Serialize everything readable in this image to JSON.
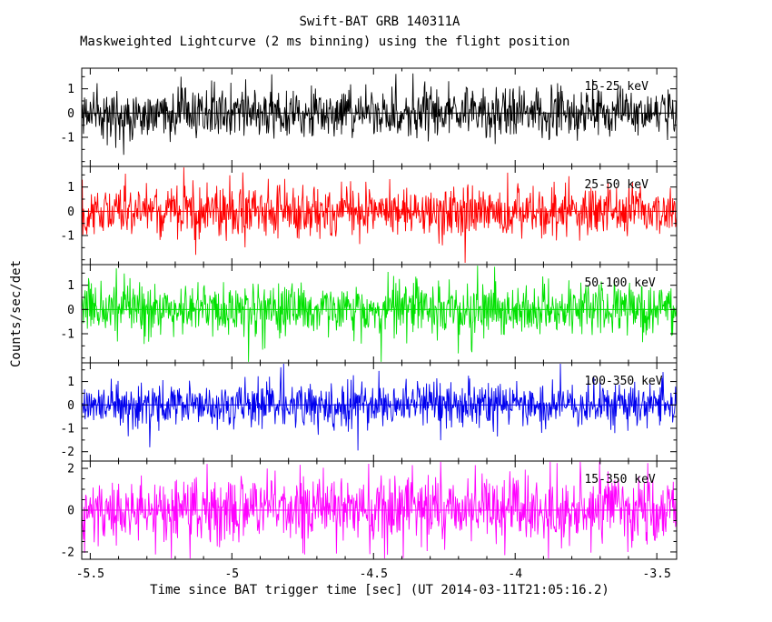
{
  "chart_data": {
    "type": "line",
    "title": "Swift-BAT GRB 140311A",
    "subtitle": "Maskweighted Lightcurve (2 ms binning) using the flight position",
    "xlabel": "Time since BAT trigger time [sec] (UT 2014-03-11T21:05:16.2)",
    "ylabel": "Counts/sec/det",
    "xlim": [
      -5.53,
      -3.43
    ],
    "xticks": [
      -5.5,
      -5,
      -4.5,
      -4,
      -3.5
    ],
    "x_minor_step": 0.1,
    "bin_ms": 2,
    "n_points": 1050,
    "grid": false,
    "legend_position": "inside-right-top-of-each-panel",
    "series": [
      {
        "name": "15-25 keV",
        "color": "#000000",
        "ylim": [
          -2.2,
          1.85
        ],
        "yticks": [
          -1,
          0,
          1
        ],
        "mean": 0,
        "noise_sigma": 0.5,
        "spike_prob": 0.04,
        "seed": 11
      },
      {
        "name": "25-50 keV",
        "color": "#ff0000",
        "ylim": [
          -2.2,
          1.85
        ],
        "yticks": [
          -1,
          0,
          1
        ],
        "mean": 0,
        "noise_sigma": 0.52,
        "spike_prob": 0.04,
        "seed": 22
      },
      {
        "name": "50-100 keV",
        "color": "#00e100",
        "ylim": [
          -2.2,
          1.85
        ],
        "yticks": [
          -1,
          0,
          1
        ],
        "mean": 0,
        "noise_sigma": 0.55,
        "spike_prob": 0.04,
        "seed": 33
      },
      {
        "name": "100-350 keV",
        "color": "#0000ee",
        "ylim": [
          -2.4,
          1.8
        ],
        "yticks": [
          -2,
          -1,
          0,
          1
        ],
        "mean": 0,
        "noise_sigma": 0.46,
        "spike_prob": 0.05,
        "seed": 44
      },
      {
        "name": "15-350 keV",
        "color": "#ff00ff",
        "ylim": [
          -2.35,
          2.35
        ],
        "yticks": [
          -2,
          0,
          2
        ],
        "mean": 0,
        "noise_sigma": 0.8,
        "spike_prob": 0.04,
        "seed": 55
      }
    ]
  }
}
